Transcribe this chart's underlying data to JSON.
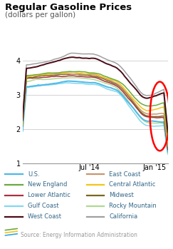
{
  "title": "Regular Gasoline Prices",
  "subtitle": "(dollars per gallon)",
  "ylim": [
    1.0,
    4.6
  ],
  "yticks": [
    1,
    2,
    3,
    4
  ],
  "xtick_positions": [
    0.46,
    0.91
  ],
  "xtick_labels": [
    "Jul '14",
    "Jan '15"
  ],
  "source": "Source: Energy Information Administration",
  "series": {
    "US": {
      "color": "#4db8e8",
      "label": "U.S.",
      "lw": 1.4
    },
    "EastCoast": {
      "color": "#c8956e",
      "label": "East Coast",
      "lw": 1.1
    },
    "NewEngland": {
      "color": "#6aaa40",
      "label": "New England",
      "lw": 1.1
    },
    "CentralAtlantic": {
      "color": "#f5c518",
      "label": "Central Atlantic",
      "lw": 1.1
    },
    "LowerAtlantic": {
      "color": "#aa3040",
      "label": "Lower Atlantic",
      "lw": 1.1
    },
    "Midwest": {
      "color": "#7a6820",
      "label": "Midwest",
      "lw": 1.1
    },
    "GulfCoast": {
      "color": "#80d8f0",
      "label": "Gulf Coast",
      "lw": 1.1
    },
    "RockyMountain": {
      "color": "#b0d890",
      "label": "Rocky Mountain",
      "lw": 1.1
    },
    "WestCoast": {
      "color": "#4a0c18",
      "label": "West Coast",
      "lw": 1.4
    },
    "California": {
      "color": "#a0a0a0",
      "label": "California",
      "lw": 1.1
    }
  },
  "legend_bg": "#eeeeee",
  "plot_bg": "#ffffff",
  "grid_color": "#cccccc",
  "title_color": "#000000",
  "subtitle_color": "#555555",
  "label_color": "#336688",
  "source_color": "#999999"
}
